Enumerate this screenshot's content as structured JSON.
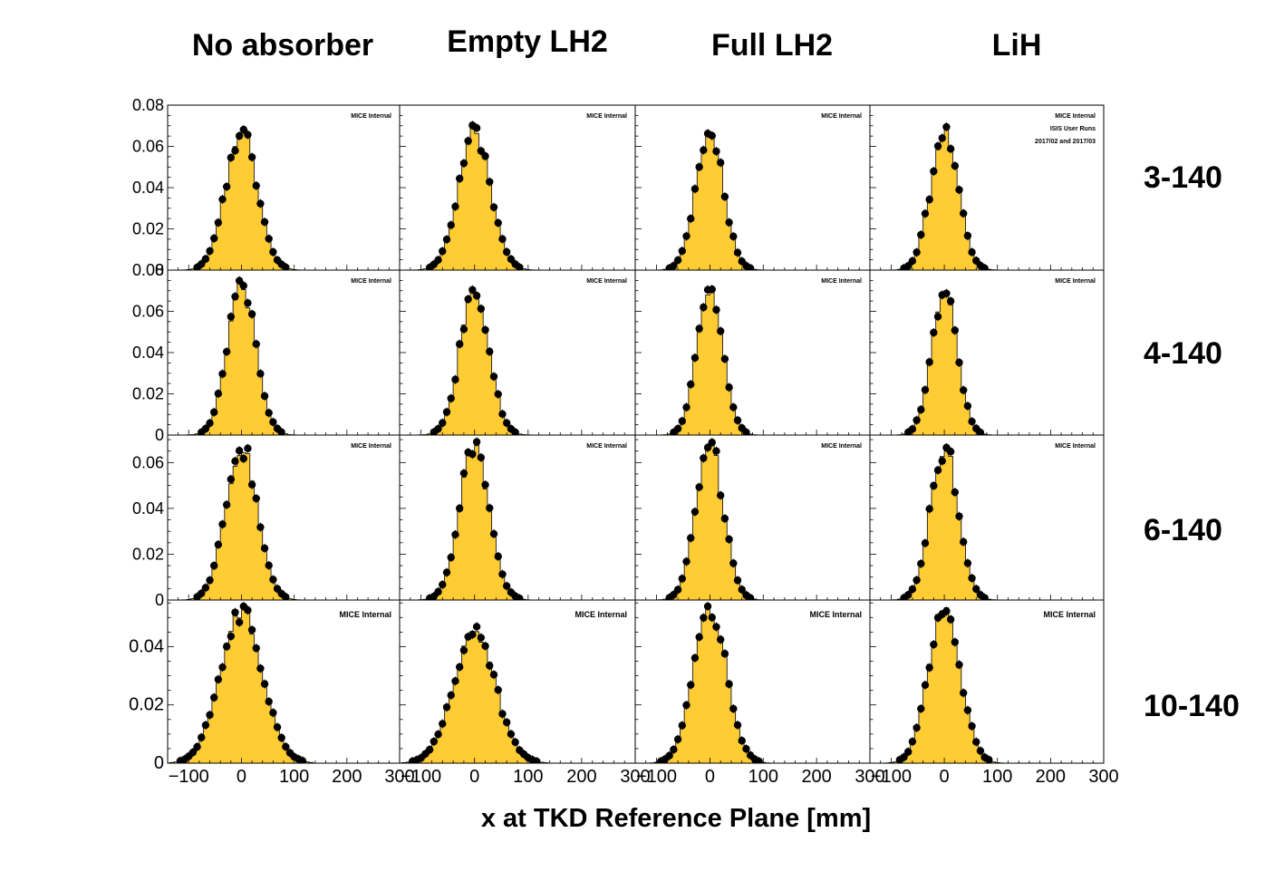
{
  "columns": [
    "No absorber",
    "Empty LH2",
    "Full LH2",
    "LiH"
  ],
  "rows": [
    "3-140",
    "4-140",
    "6-140",
    "10-140"
  ],
  "xlabel": "x at TKD Reference Plane [mm]",
  "annotations": {
    "main": "MICE Internal",
    "extra": [
      "ISIS User Runs",
      "2017/02 and 2017/03"
    ]
  },
  "colors": {
    "fill": "#ffcc33",
    "outline": "#000000",
    "marker": "#000000"
  },
  "chart_data": {
    "type": "histogram-grid",
    "xlim": [
      -140,
      300
    ],
    "x_ticks": [
      -100,
      0,
      100,
      200,
      300
    ],
    "x_tick_labels": [
      "−100",
      "0",
      "100",
      "200",
      "300"
    ],
    "bin_width": 8,
    "panel_rows": [
      {
        "row": "3-140",
        "ylim": [
          0,
          0.08
        ],
        "y_ticks": [
          0,
          0.02,
          0.04,
          0.06,
          0.08
        ],
        "y_tick_labels": [
          "0",
          "0.02",
          "0.04",
          "0.06",
          "0.08"
        ],
        "peaks": [
          0.067,
          0.066,
          0.066,
          0.066
        ],
        "sigmas": [
          30,
          30,
          26,
          26
        ]
      },
      {
        "row": "4-140",
        "ylim": [
          0,
          0.08
        ],
        "y_ticks": [
          0,
          0.02,
          0.04,
          0.06,
          0.08
        ],
        "y_tick_labels": [
          "0",
          "0.02",
          "0.04",
          "0.06",
          "0.08"
        ],
        "peaks": [
          0.072,
          0.071,
          0.072,
          0.071
        ],
        "sigmas": [
          27,
          27,
          24,
          24
        ]
      },
      {
        "row": "6-140",
        "ylim": [
          0,
          0.072
        ],
        "y_ticks": [
          0,
          0.02,
          0.04,
          0.06
        ],
        "y_tick_labels": [
          "0",
          "0.02",
          "0.04",
          "0.06"
        ],
        "peaks": [
          0.066,
          0.066,
          0.067,
          0.067
        ],
        "sigmas": [
          30,
          28,
          26,
          26
        ]
      },
      {
        "row": "10-140",
        "ylim": [
          0,
          0.056
        ],
        "y_ticks": [
          0,
          0.02,
          0.04
        ],
        "y_tick_labels": [
          "0",
          "0.02",
          "0.04"
        ],
        "peaks": [
          0.052,
          0.043,
          0.053,
          0.053
        ],
        "sigmas": [
          40,
          40,
          31,
          30
        ]
      }
    ]
  }
}
